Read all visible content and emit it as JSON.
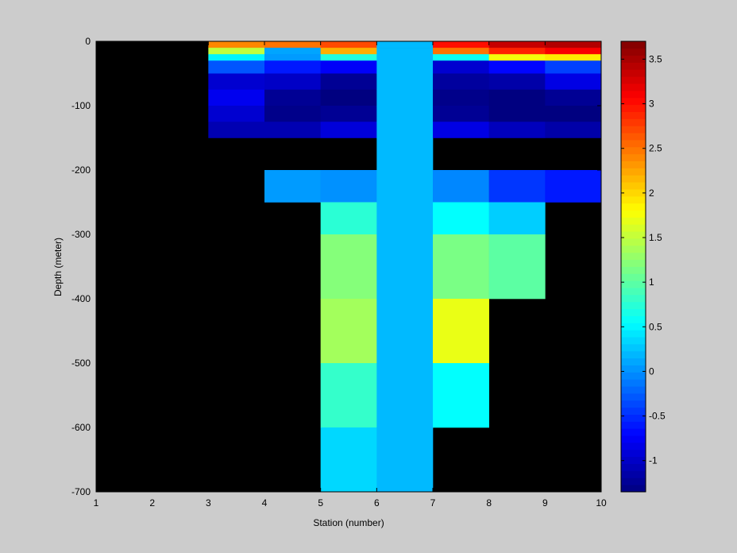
{
  "chart_data": {
    "type": "heatmap",
    "xlabel": "Station (number)",
    "ylabel": "Depth (meter)",
    "xlim": [
      1,
      10
    ],
    "ylim": [
      -700,
      0
    ],
    "xticks": [
      1,
      2,
      3,
      4,
      5,
      6,
      7,
      8,
      9,
      10
    ],
    "yticks": [
      0,
      -100,
      -200,
      -300,
      -400,
      -500,
      -600,
      -700
    ],
    "background_color": "#000000",
    "colormap": "jet",
    "color_range": [
      -1.35,
      3.7
    ],
    "colorbar_ticks": [
      3.5,
      3,
      2.5,
      2,
      1.5,
      1,
      0.5,
      0,
      -0.5,
      -1
    ],
    "depth_levels": [
      0,
      -10,
      -20,
      -30,
      -50,
      -75,
      -100,
      -125,
      -150,
      -200,
      -250,
      -300,
      -400,
      -500,
      -600,
      -700
    ],
    "columns": [
      {
        "x_range": [
          3,
          4
        ],
        "values": [
          2.4,
          1.5,
          0.5,
          -0.3,
          -0.95,
          -0.8,
          -0.95,
          -1.1,
          null,
          null,
          null,
          null,
          null,
          null,
          null
        ]
      },
      {
        "x_range": [
          4,
          5
        ],
        "values": [
          2.5,
          0.1,
          0.05,
          -0.6,
          -1.0,
          -1.25,
          -1.3,
          -1.1,
          null,
          0.05,
          null,
          null,
          null,
          null,
          null
        ]
      },
      {
        "x_range": [
          5,
          6
        ],
        "values": [
          2.7,
          2.2,
          0.7,
          -0.75,
          -1.25,
          -1.35,
          -1.25,
          -0.9,
          null,
          0.0,
          0.75,
          1.2,
          1.35,
          0.8,
          0.35
        ]
      },
      {
        "x_range": [
          6,
          7
        ],
        "values": [
          0.2,
          0.2,
          0.2,
          0.2,
          0.2,
          0.2,
          0.2,
          0.2,
          0.2,
          0.2,
          0.2,
          0.2,
          0.2,
          0.2,
          0.2
        ]
      },
      {
        "x_range": [
          7,
          8
        ],
        "values": [
          3.0,
          2.5,
          0.6,
          -0.95,
          -1.2,
          -1.3,
          -1.25,
          -0.85,
          null,
          -0.05,
          0.55,
          1.15,
          1.7,
          0.55,
          null
        ]
      },
      {
        "x_range": [
          8,
          9
        ],
        "values": [
          3.35,
          2.9,
          1.75,
          -0.7,
          -1.15,
          -1.35,
          -1.35,
          -1.05,
          null,
          -0.45,
          0.3,
          1.0,
          null,
          null,
          null
        ]
      },
      {
        "x_range": [
          9,
          10
        ],
        "values": [
          3.45,
          3.1,
          1.9,
          -0.4,
          -0.85,
          -1.25,
          -1.35,
          -1.15,
          null,
          -0.6,
          null,
          null,
          null,
          null,
          null
        ]
      }
    ]
  }
}
